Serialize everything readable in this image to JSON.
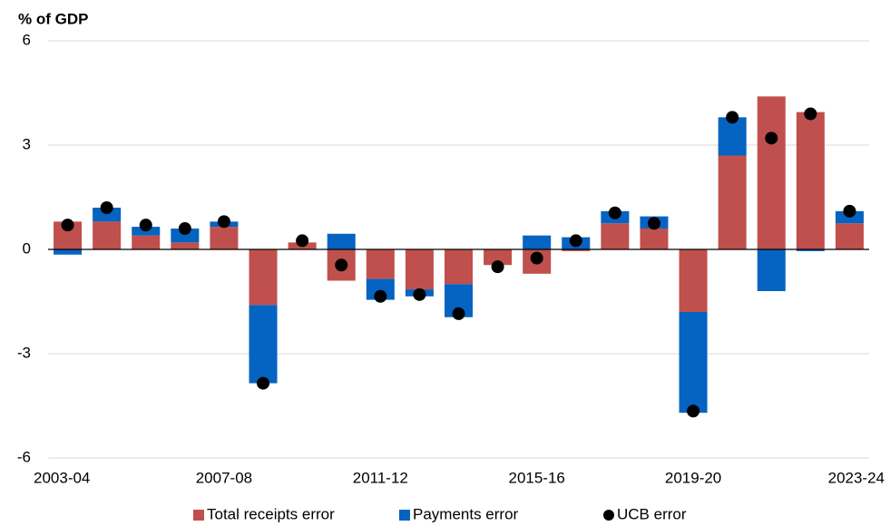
{
  "chart_data": {
    "type": "bar",
    "y_label": "% of GDP",
    "categories": [
      "2003-04",
      null,
      null,
      null,
      "2007-08",
      null,
      null,
      null,
      "2011-12",
      null,
      null,
      null,
      "2015-16",
      null,
      null,
      null,
      "2019-20",
      null,
      null,
      null,
      "2023-24"
    ],
    "series": [
      {
        "name": "Total receipts error",
        "color": "#c0504d",
        "type": "bar",
        "values": [
          0.8,
          0.8,
          0.4,
          0.2,
          0.65,
          -1.6,
          0.2,
          -0.9,
          -0.85,
          -1.15,
          -1.0,
          -0.45,
          -0.7,
          -0.05,
          0.75,
          0.6,
          -1.8,
          2.7,
          4.4,
          3.95,
          0.75
        ]
      },
      {
        "name": "Payments error",
        "color": "#0563c1",
        "type": "bar",
        "values": [
          -0.15,
          0.4,
          0.25,
          0.4,
          0.15,
          -2.25,
          0,
          0.45,
          -0.6,
          -0.2,
          -0.95,
          0,
          0.4,
          0.35,
          0.35,
          0.35,
          -2.9,
          1.1,
          -1.2,
          -0.05,
          0.35
        ]
      },
      {
        "name": "UCB error",
        "color": "#000000",
        "type": "scatter",
        "values": [
          0.7,
          1.2,
          0.7,
          0.6,
          0.8,
          -3.85,
          0.25,
          -0.45,
          -1.35,
          -1.3,
          -1.85,
          -0.5,
          -0.25,
          0.25,
          1.05,
          0.75,
          -4.65,
          3.8,
          3.2,
          3.9,
          1.1
        ]
      }
    ],
    "ylim": [
      -6,
      6
    ],
    "yticks": [
      -6,
      -3,
      0,
      3,
      6
    ],
    "grid": true,
    "legend": "bottom"
  }
}
